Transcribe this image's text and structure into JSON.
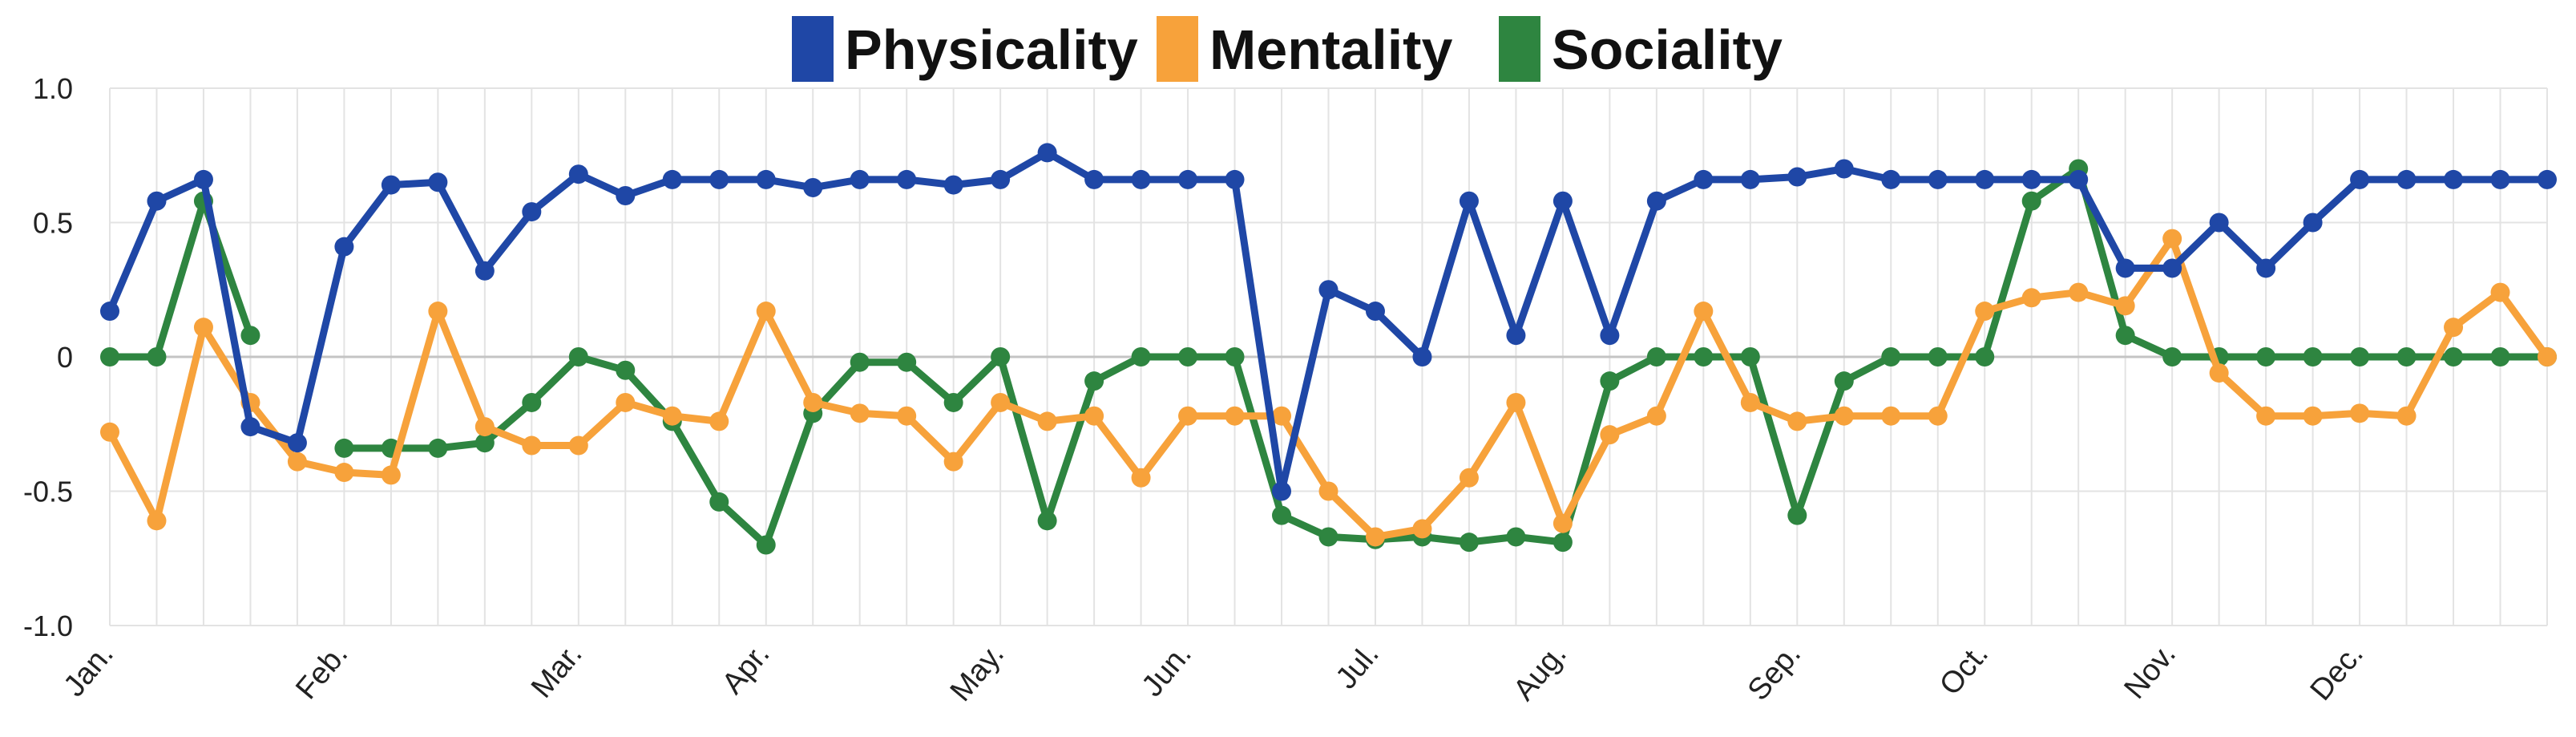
{
  "chart_data": {
    "type": "line",
    "title": "",
    "xlabel": "",
    "ylabel": "",
    "ylim": [
      -1.0,
      1.0
    ],
    "yticks": [
      1.0,
      0.5,
      0,
      -0.5,
      -1.0
    ],
    "ytick_labels": [
      "1.0",
      "0.5",
      "0",
      "-0.5",
      "-1.0"
    ],
    "month_labels": [
      "Jan.",
      "Feb.",
      "Mar.",
      "Apr.",
      "May.",
      "Jun.",
      "Jul.",
      "Aug.",
      "Sep.",
      "Oct.",
      "Nov.",
      "Dec."
    ],
    "month_start_index": [
      0,
      5,
      10,
      14,
      19,
      23,
      27,
      31,
      36,
      40,
      44,
      48
    ],
    "num_points": 53,
    "grid": true,
    "legend_position": "top-center",
    "series": [
      {
        "name": "Physicality",
        "color": "#1f47a6",
        "values": [
          0.17,
          0.58,
          0.66,
          -0.26,
          -0.32,
          0.41,
          0.64,
          0.65,
          0.32,
          0.54,
          0.68,
          0.6,
          0.66,
          0.66,
          0.66,
          0.63,
          0.66,
          0.66,
          0.64,
          0.66,
          0.76,
          0.66,
          0.66,
          0.66,
          0.66,
          -0.5,
          0.25,
          0.17,
          0.0,
          0.58,
          0.08,
          0.58,
          0.08,
          0.58,
          0.66,
          0.66,
          0.67,
          0.7,
          0.66,
          0.66,
          0.66,
          0.66,
          0.66,
          0.33,
          0.33,
          0.5,
          0.33,
          0.5,
          0.66,
          0.66,
          0.66,
          0.66,
          0.66
        ]
      },
      {
        "name": "Mentality",
        "color": "#f7a23b",
        "values": [
          -0.28,
          -0.61,
          0.11,
          -0.17,
          -0.39,
          -0.43,
          -0.44,
          0.17,
          -0.26,
          -0.33,
          -0.33,
          -0.17,
          -0.22,
          -0.24,
          0.17,
          -0.17,
          -0.21,
          -0.22,
          -0.39,
          -0.17,
          -0.24,
          -0.22,
          -0.45,
          -0.22,
          -0.22,
          -0.22,
          -0.5,
          -0.67,
          -0.64,
          -0.45,
          -0.17,
          -0.62,
          -0.29,
          -0.22,
          0.17,
          -0.17,
          -0.24,
          -0.22,
          -0.22,
          -0.22,
          0.17,
          0.22,
          0.24,
          0.19,
          0.44,
          -0.06,
          -0.22,
          -0.22,
          -0.21,
          -0.22,
          0.11,
          0.24,
          0.0
        ]
      },
      {
        "name": "Sociality",
        "color": "#2e8540",
        "values": [
          0.0,
          0.0,
          0.58,
          0.08,
          null,
          -0.34,
          -0.34,
          -0.34,
          -0.32,
          -0.17,
          0.0,
          -0.05,
          -0.24,
          -0.54,
          -0.7,
          -0.21,
          -0.02,
          -0.02,
          -0.17,
          0.0,
          -0.61,
          -0.09,
          0.0,
          0.0,
          0.0,
          -0.59,
          -0.67,
          -0.68,
          -0.67,
          -0.69,
          -0.67,
          -0.69,
          -0.09,
          0.0,
          0.0,
          0.0,
          -0.59,
          -0.09,
          0.0,
          0.0,
          0.0,
          0.58,
          0.7,
          0.08,
          0.0,
          0.0,
          0.0,
          0.0,
          0.0,
          0.0,
          0.0,
          0.0,
          0.0
        ]
      }
    ]
  }
}
